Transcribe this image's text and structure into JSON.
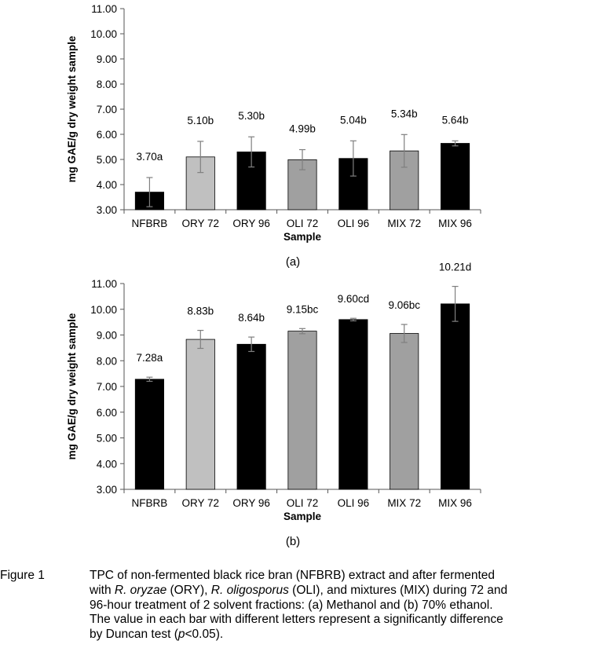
{
  "chart_data": [
    {
      "type": "bar",
      "categories": [
        "NFBRB",
        "ORY 72",
        "ORY 96",
        "OLI 72",
        "OLI 96",
        "MIX 72",
        "MIX 96"
      ],
      "values": [
        3.7,
        5.1,
        5.3,
        4.99,
        5.04,
        5.34,
        5.64
      ],
      "value_labels": [
        "3.70a",
        "5.10b",
        "5.30b",
        "4.99b",
        "5.04b",
        "5.34b",
        "5.64b"
      ],
      "errors": [
        0.58,
        0.62,
        0.6,
        0.4,
        0.7,
        0.65,
        0.1
      ],
      "bar_colors": [
        "#000000",
        "#c0c0c0",
        "#000000",
        "#a0a0a0",
        "#000000",
        "#a0a0a0",
        "#000000"
      ],
      "xlabel": "Sample",
      "ylabel": "mg GAE/g dry weight sample",
      "ylim": [
        3.0,
        11.0
      ],
      "yticks": [
        "3.00",
        "4.00",
        "5.00",
        "6.00",
        "7.00",
        "8.00",
        "9.00",
        "10.00",
        "11.00"
      ],
      "panel_label": "(a)",
      "grid": false
    },
    {
      "type": "bar",
      "categories": [
        "NFBRB",
        "ORY 72",
        "ORY 96",
        "OLI 72",
        "OLI 96",
        "MIX 72",
        "MIX 96"
      ],
      "values": [
        7.28,
        8.83,
        8.64,
        9.15,
        9.6,
        9.06,
        10.21
      ],
      "value_labels": [
        "7.28a",
        "8.83b",
        "8.64b",
        "9.15bc",
        "9.60cd",
        "9.06bc",
        "10.21d"
      ],
      "errors": [
        0.08,
        0.35,
        0.28,
        0.1,
        0.05,
        0.35,
        0.68
      ],
      "bar_colors": [
        "#000000",
        "#c0c0c0",
        "#000000",
        "#a0a0a0",
        "#000000",
        "#a0a0a0",
        "#000000"
      ],
      "xlabel": "Sample",
      "ylabel": "mg GAE/g dry weight sample",
      "ylim": [
        3.0,
        11.0
      ],
      "yticks": [
        "3.00",
        "4.00",
        "5.00",
        "6.00",
        "7.00",
        "8.00",
        "9.00",
        "10.00",
        "11.00"
      ],
      "panel_label": "(b)",
      "grid": false
    }
  ],
  "caption": {
    "lead": "Figure 1",
    "line1": "TPC of non-fermented black rice bran (NFBRB) extract and after fermented",
    "line2_pre": "with ",
    "line2_ital1": "R. oryzae",
    "line2_mid1": " (ORY), ",
    "line2_ital2": "R. oligosporus",
    "line2_post": " (OLI), and mixtures (MIX) during 72 and",
    "line3": "96-hour treatment of 2 solvent fractions: (a) Methanol and (b) 70% ethanol.",
    "line4": "The value in each bar with different letters represent a significantly difference",
    "line5_pre": "by Duncan test (",
    "line5_ital": "p",
    "line5_post": "<0.05)."
  }
}
